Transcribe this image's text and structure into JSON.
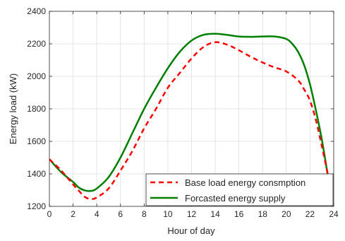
{
  "chart_data": {
    "type": "line",
    "xlabel": "Hour of day",
    "ylabel": "Energy load (kW)",
    "xlim": [
      0,
      24
    ],
    "ylim": [
      1200,
      2400
    ],
    "xticks": [
      0,
      2,
      4,
      6,
      8,
      10,
      12,
      14,
      16,
      18,
      20,
      22,
      24
    ],
    "yticks": [
      1200,
      1400,
      1600,
      1800,
      2000,
      2200,
      2400
    ],
    "grid": true,
    "legend_position": "bottom-right",
    "series": [
      {
        "name": "Base load energy consmption",
        "color": "#ff0000",
        "line_style": "dashed",
        "x": [
          0,
          1,
          2,
          2.5,
          3,
          3.5,
          4,
          5,
          6,
          7,
          8,
          9,
          10,
          11,
          12,
          13,
          14,
          15,
          16,
          17,
          18,
          19,
          20,
          21,
          21.5,
          22,
          22.5,
          23,
          23.5
        ],
        "y": [
          1490,
          1420,
          1335,
          1295,
          1258,
          1245,
          1255,
          1310,
          1420,
          1540,
          1680,
          1800,
          1930,
          2020,
          2110,
          2180,
          2210,
          2195,
          2160,
          2120,
          2085,
          2055,
          2030,
          1975,
          1920,
          1850,
          1730,
          1570,
          1400
        ]
      },
      {
        "name": "Forcasted energy supply",
        "color": "#008000",
        "line_style": "solid",
        "x": [
          0,
          1,
          2,
          2.5,
          3,
          3.5,
          4,
          5,
          6,
          7,
          8,
          9,
          10,
          11,
          12,
          13,
          14,
          15,
          16,
          17,
          18,
          19,
          20,
          20.5,
          21,
          21.5,
          22,
          22.5,
          23,
          23.5
        ],
        "y": [
          1490,
          1410,
          1350,
          1315,
          1298,
          1295,
          1310,
          1380,
          1500,
          1650,
          1800,
          1930,
          2050,
          2150,
          2220,
          2255,
          2262,
          2255,
          2245,
          2243,
          2245,
          2245,
          2230,
          2200,
          2150,
          2070,
          1950,
          1790,
          1610,
          1390
        ]
      }
    ]
  }
}
